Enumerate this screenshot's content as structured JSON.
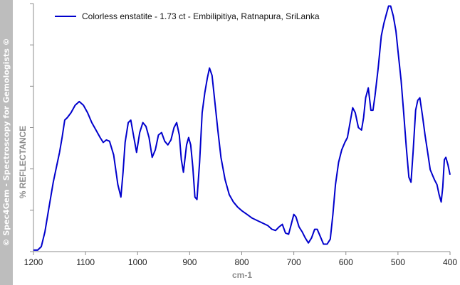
{
  "watermark": "© Spec4Gem - Spectroscopy for Gemologists ©",
  "colors": {
    "series": "#0000cc",
    "axis": "#8c8c8c",
    "watermark_bar": "#bdbdbd"
  },
  "chart_data": {
    "type": "line",
    "title": "",
    "xlabel": "cm-1",
    "ylabel": "% REFLECTANCE",
    "xlim": [
      1200,
      400
    ],
    "x_reversed": true,
    "ylim": [
      0,
      100
    ],
    "y_ticks_labeled": false,
    "x_ticks": [
      1200,
      1100,
      1000,
      900,
      800,
      700,
      600,
      500,
      400
    ],
    "grid": false,
    "legend_placement": "top-left",
    "series": [
      {
        "name": "Colorless enstatite - 1.73 ct - Embilipitiya, Ratnapura, SriLanka",
        "color": "#0000cc",
        "points": [
          [
            1200,
            0.6
          ],
          [
            1192,
            0.6
          ],
          [
            1185,
            2
          ],
          [
            1178,
            8
          ],
          [
            1170,
            18
          ],
          [
            1162,
            28
          ],
          [
            1155,
            35
          ],
          [
            1150,
            40
          ],
          [
            1145,
            46
          ],
          [
            1140,
            53
          ],
          [
            1135,
            54
          ],
          [
            1128,
            56
          ],
          [
            1120,
            59
          ],
          [
            1112,
            60.5
          ],
          [
            1104,
            59
          ],
          [
            1096,
            56
          ],
          [
            1088,
            52
          ],
          [
            1080,
            49
          ],
          [
            1072,
            46
          ],
          [
            1066,
            44
          ],
          [
            1060,
            45
          ],
          [
            1054,
            44.5
          ],
          [
            1046,
            39
          ],
          [
            1038,
            27
          ],
          [
            1032,
            22
          ],
          [
            1028,
            32
          ],
          [
            1024,
            44
          ],
          [
            1018,
            52
          ],
          [
            1013,
            53
          ],
          [
            1008,
            47
          ],
          [
            1002,
            40
          ],
          [
            996,
            48
          ],
          [
            990,
            52
          ],
          [
            984,
            50.5
          ],
          [
            978,
            46
          ],
          [
            972,
            38
          ],
          [
            966,
            41
          ],
          [
            960,
            47
          ],
          [
            954,
            48
          ],
          [
            948,
            44.5
          ],
          [
            942,
            43
          ],
          [
            936,
            45
          ],
          [
            930,
            50
          ],
          [
            925,
            52
          ],
          [
            920,
            47
          ],
          [
            916,
            37
          ],
          [
            912,
            32
          ],
          [
            906,
            43
          ],
          [
            902,
            46
          ],
          [
            898,
            43
          ],
          [
            894,
            34
          ],
          [
            890,
            22
          ],
          [
            886,
            21
          ],
          [
            881,
            36
          ],
          [
            876,
            56
          ],
          [
            871,
            64
          ],
          [
            866,
            70
          ],
          [
            862,
            74
          ],
          [
            857,
            71
          ],
          [
            852,
            61
          ],
          [
            846,
            49
          ],
          [
            840,
            38
          ],
          [
            832,
            29
          ],
          [
            824,
            23
          ],
          [
            816,
            20
          ],
          [
            808,
            18
          ],
          [
            800,
            16.5
          ],
          [
            790,
            15
          ],
          [
            780,
            13.5
          ],
          [
            770,
            12.5
          ],
          [
            760,
            11.5
          ],
          [
            750,
            10.5
          ],
          [
            742,
            9
          ],
          [
            735,
            8.5
          ],
          [
            728,
            10
          ],
          [
            722,
            11
          ],
          [
            716,
            7.5
          ],
          [
            710,
            7
          ],
          [
            705,
            11
          ],
          [
            700,
            15
          ],
          [
            696,
            14
          ],
          [
            690,
            10
          ],
          [
            684,
            8
          ],
          [
            678,
            5.5
          ],
          [
            672,
            3.5
          ],
          [
            666,
            5.5
          ],
          [
            660,
            9
          ],
          [
            655,
            9
          ],
          [
            650,
            6.5
          ],
          [
            643,
            3
          ],
          [
            636,
            3
          ],
          [
            630,
            5
          ],
          [
            625,
            15
          ],
          [
            620,
            27
          ],
          [
            614,
            36
          ],
          [
            608,
            41
          ],
          [
            602,
            44
          ],
          [
            597,
            46
          ],
          [
            592,
            52
          ],
          [
            587,
            58
          ],
          [
            582,
            56
          ],
          [
            576,
            50
          ],
          [
            570,
            49
          ],
          [
            566,
            54
          ],
          [
            562,
            62
          ],
          [
            557,
            66
          ],
          [
            552,
            57
          ],
          [
            548,
            57
          ],
          [
            544,
            63
          ],
          [
            538,
            74
          ],
          [
            532,
            87
          ],
          [
            527,
            92
          ],
          [
            522,
            96
          ],
          [
            518,
            99
          ],
          [
            514,
            99
          ],
          [
            509,
            95
          ],
          [
            504,
            89
          ],
          [
            499,
            79
          ],
          [
            494,
            69
          ],
          [
            489,
            56
          ],
          [
            484,
            42
          ],
          [
            479,
            30
          ],
          [
            475,
            28
          ],
          [
            471,
            40
          ],
          [
            466,
            57
          ],
          [
            462,
            61
          ],
          [
            458,
            62
          ],
          [
            453,
            55
          ],
          [
            448,
            47
          ],
          [
            443,
            40
          ],
          [
            438,
            33
          ],
          [
            434,
            31
          ],
          [
            430,
            29
          ],
          [
            425,
            27
          ],
          [
            421,
            23
          ],
          [
            417,
            20
          ],
          [
            414,
            26
          ],
          [
            411,
            37
          ],
          [
            408,
            38
          ],
          [
            404,
            35
          ],
          [
            400,
            31
          ]
        ]
      }
    ]
  }
}
